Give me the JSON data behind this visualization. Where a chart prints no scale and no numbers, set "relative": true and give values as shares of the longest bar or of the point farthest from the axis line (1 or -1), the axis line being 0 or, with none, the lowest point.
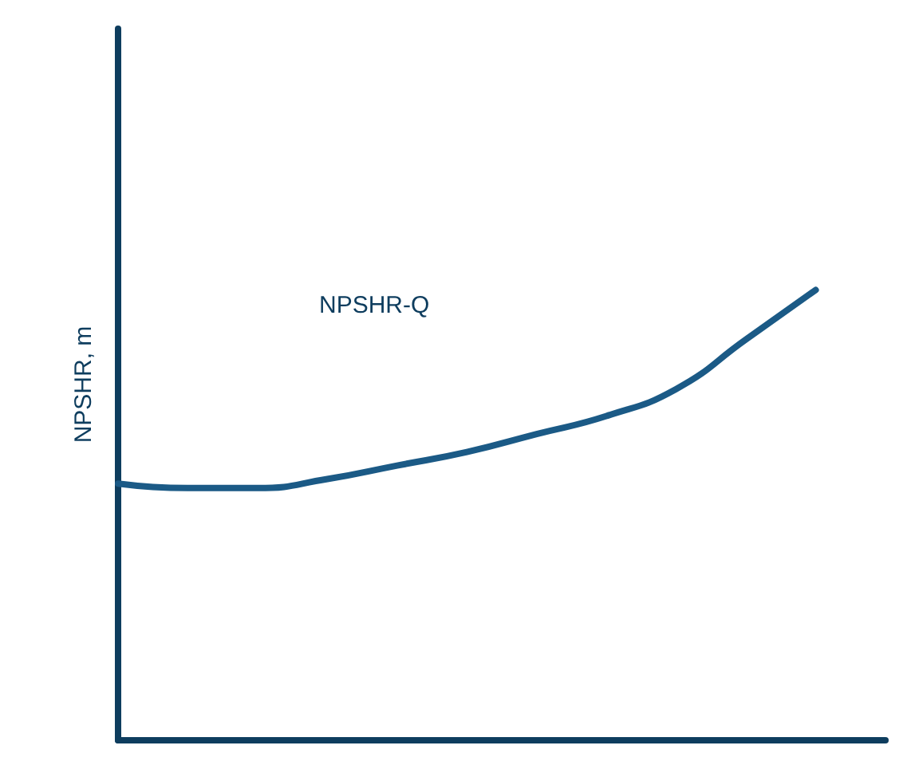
{
  "chart_data": {
    "type": "line",
    "relative": true,
    "ylabel": "NPSHR, m",
    "annotations": [
      "NPSHR-Q"
    ],
    "categories": [
      null,
      null,
      null,
      null,
      null,
      null,
      null,
      null,
      null,
      null,
      null,
      null
    ],
    "series": [
      {
        "color": "#1b5a86",
        "values": [
          0.57,
          0.56,
          0.56,
          0.58,
          0.61,
          0.64,
          0.68,
          0.72,
          0.78,
          0.89,
          1,
          null
        ]
      }
    ],
    "grid": false,
    "marker": "none",
    "line_style": "solid"
  }
}
